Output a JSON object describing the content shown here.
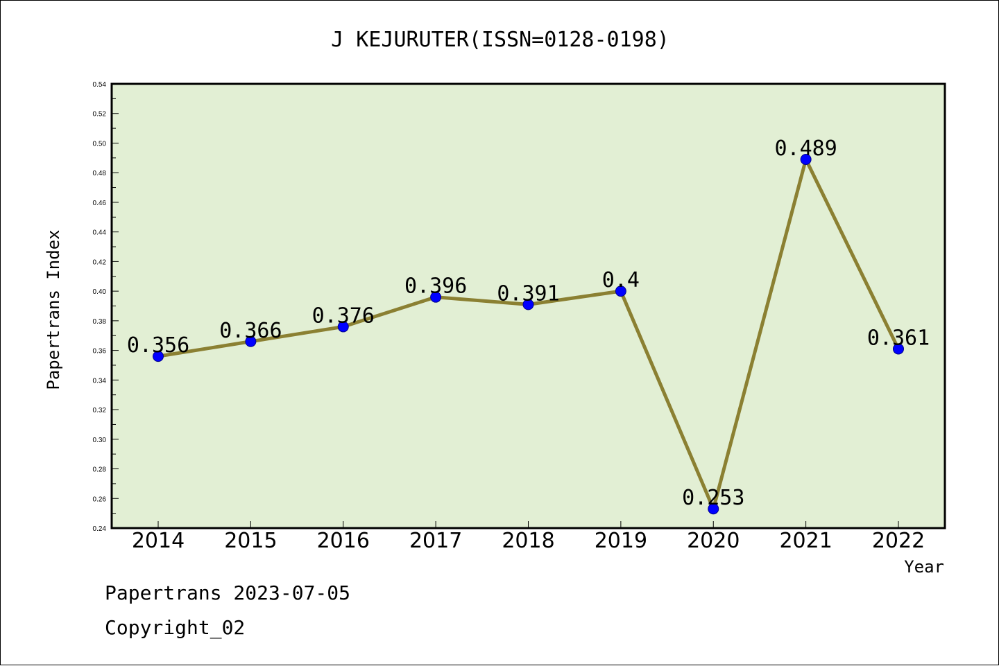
{
  "chart_data": {
    "type": "line",
    "title": "J KEJURUTER(ISSN=0128-0198)",
    "xlabel": "Year",
    "ylabel": "Papertrans Index",
    "categories": [
      "2014",
      "2015",
      "2016",
      "2017",
      "2018",
      "2019",
      "2020",
      "2021",
      "2022"
    ],
    "series": [
      {
        "values": [
          0.356,
          0.366,
          0.376,
          0.396,
          0.391,
          0.4,
          0.253,
          0.489,
          0.361
        ],
        "labels": [
          "0.356",
          "0.366",
          "0.376",
          "0.396",
          "0.391",
          "0.4",
          "0.253",
          "0.489",
          "0.361"
        ],
        "line_color": "#8b8032",
        "marker_color": "#0000ff"
      }
    ],
    "ylim": [
      0.24,
      0.54
    ],
    "yticks": [
      "0.24",
      "0.26",
      "0.28",
      "0.30",
      "0.32",
      "0.34",
      "0.36",
      "0.38",
      "0.40",
      "0.42",
      "0.44",
      "0.46",
      "0.48",
      "0.50",
      "0.52",
      "0.54"
    ],
    "plot_background": "#e2efd4",
    "grid": false,
    "legend": "none"
  },
  "footer": {
    "source": "Papertrans 2023-07-05",
    "copyright": "Copyright_02"
  }
}
